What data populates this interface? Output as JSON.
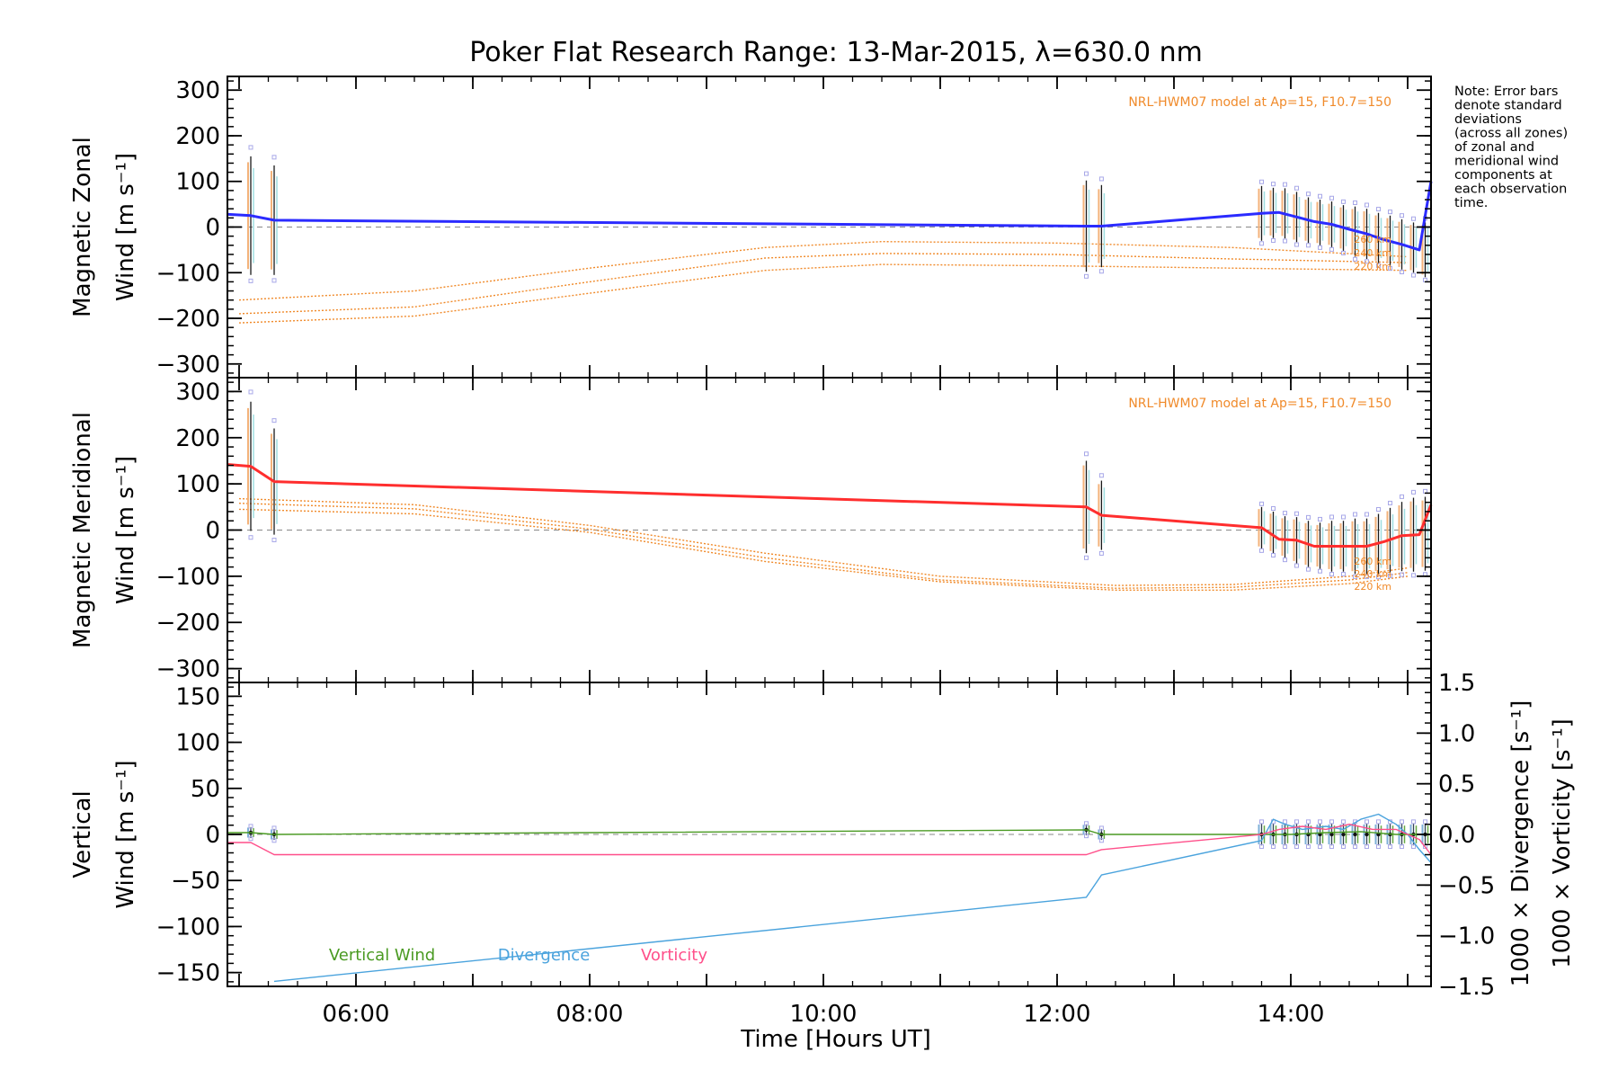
{
  "title": "Poker Flat Research Range: 13-Mar-2015, λ=630.0 nm",
  "xlabel": "Time [Hours UT]",
  "note": [
    "Note: Error bars",
    "denote standard",
    "deviations",
    "(across all zones)",
    "of zonal and",
    "meridional wind",
    "components at",
    "each observation",
    "time."
  ],
  "colors": {
    "zonal": "#2b2bff",
    "meridional": "#ff2e2e",
    "model": "#f08a2a",
    "vertical": "#4a9a22",
    "divergence": "#4aa3dd",
    "vorticity": "#ff4f8a",
    "points": "#a8a8e8",
    "grid": "#888888"
  },
  "x_ticks": [
    {
      "value": 6,
      "label": "06:00"
    },
    {
      "value": 8,
      "label": "08:00"
    },
    {
      "value": 10,
      "label": "10:00"
    },
    {
      "value": 12,
      "label": "12:00"
    },
    {
      "value": 14,
      "label": "14:00"
    }
  ],
  "chart_data": [
    {
      "type": "line",
      "ylabel": [
        "Magnetic Zonal",
        "Wind [m s⁻¹]"
      ],
      "xlim": [
        4.9,
        15.2
      ],
      "ylim": [
        -330,
        330
      ],
      "yticks": [
        300,
        200,
        100,
        0,
        -100,
        -200,
        -300
      ],
      "yticklabels": [
        "300",
        "200",
        "100",
        "0",
        "−100",
        "−200",
        "−300"
      ],
      "model_label": "NRL-HWM07 model at Ap=15, F10.7=150",
      "altitude_labels": [
        "260 km",
        "240 km",
        "220 km"
      ],
      "series": [
        {
          "name": "zonal",
          "x": [
            4.9,
            5.1,
            5.3,
            12.25,
            12.38,
            13.75,
            13.9,
            14.05,
            14.2,
            14.35,
            14.5,
            14.65,
            14.8,
            14.95,
            15.1,
            15.2
          ],
          "y": [
            28,
            25,
            15,
            2,
            2,
            30,
            32,
            22,
            12,
            6,
            -5,
            -15,
            -28,
            -38,
            -50,
            100
          ]
        },
        {
          "name": "model-260",
          "x": [
            5.0,
            6.5,
            8.0,
            9.5,
            10.5,
            12.0,
            13.5,
            15.0
          ],
          "y": [
            -160,
            -140,
            -90,
            -45,
            -32,
            -35,
            -45,
            -65
          ]
        },
        {
          "name": "model-240",
          "x": [
            5.0,
            6.5,
            8.0,
            9.5,
            10.5,
            12.0,
            13.5,
            15.0
          ],
          "y": [
            -190,
            -175,
            -120,
            -68,
            -58,
            -60,
            -70,
            -78
          ]
        },
        {
          "name": "model-220",
          "x": [
            5.0,
            6.5,
            8.0,
            9.5,
            10.5,
            12.0,
            13.5,
            15.0
          ],
          "y": [
            -210,
            -195,
            -145,
            -95,
            -82,
            -85,
            -90,
            -95
          ]
        }
      ],
      "errorbars": [
        {
          "x": 5.1,
          "y": 25,
          "err": 130
        },
        {
          "x": 5.3,
          "y": 15,
          "err": 120
        },
        {
          "x": 12.25,
          "y": 2,
          "err": 100
        },
        {
          "x": 12.38,
          "y": 2,
          "err": 90
        },
        {
          "x": 13.75,
          "y": 30,
          "err": 60
        },
        {
          "x": 13.85,
          "y": 31,
          "err": 55
        },
        {
          "x": 13.95,
          "y": 30,
          "err": 55
        },
        {
          "x": 14.05,
          "y": 22,
          "err": 55
        },
        {
          "x": 14.15,
          "y": 15,
          "err": 50
        },
        {
          "x": 14.25,
          "y": 10,
          "err": 50
        },
        {
          "x": 14.35,
          "y": 6,
          "err": 50
        },
        {
          "x": 14.45,
          "y": -2,
          "err": 50
        },
        {
          "x": 14.55,
          "y": -10,
          "err": 55
        },
        {
          "x": 14.65,
          "y": -15,
          "err": 55
        },
        {
          "x": 14.75,
          "y": -24,
          "err": 55
        },
        {
          "x": 14.85,
          "y": -30,
          "err": 55
        },
        {
          "x": 14.95,
          "y": -38,
          "err": 55
        },
        {
          "x": 15.05,
          "y": -45,
          "err": 55
        },
        {
          "x": 15.15,
          "y": -50,
          "err": 60
        }
      ]
    },
    {
      "type": "line",
      "ylabel": [
        "Magnetic Meridional",
        "Wind [m s⁻¹]"
      ],
      "xlim": [
        4.9,
        15.2
      ],
      "ylim": [
        -330,
        330
      ],
      "yticks": [
        300,
        200,
        100,
        0,
        -100,
        -200,
        -300
      ],
      "yticklabels": [
        "300",
        "200",
        "100",
        "0",
        "−100",
        "−200",
        "−300"
      ],
      "model_label": "NRL-HWM07 model at Ap=15, F10.7=150",
      "altitude_labels": [
        "260 km",
        "240 km",
        "220 km"
      ],
      "series": [
        {
          "name": "meridional",
          "x": [
            4.9,
            5.1,
            5.3,
            12.25,
            12.38,
            13.75,
            13.9,
            14.05,
            14.2,
            14.35,
            14.5,
            14.65,
            14.8,
            14.95,
            15.1,
            15.2
          ],
          "y": [
            142,
            138,
            105,
            50,
            32,
            5,
            -20,
            -22,
            -35,
            -35,
            -35,
            -35,
            -25,
            -12,
            -10,
            55
          ]
        },
        {
          "name": "model-260",
          "x": [
            5.0,
            6.5,
            8.0,
            9.5,
            11.0,
            12.5,
            13.5,
            14.5,
            15.0
          ],
          "y": [
            68,
            55,
            10,
            -50,
            -100,
            -120,
            -118,
            -100,
            -82
          ]
        },
        {
          "name": "model-240",
          "x": [
            5.0,
            6.5,
            8.0,
            9.5,
            11.0,
            12.5,
            13.5,
            14.5,
            15.0
          ],
          "y": [
            58,
            46,
            2,
            -60,
            -108,
            -126,
            -124,
            -108,
            -92
          ]
        },
        {
          "name": "model-220",
          "x": [
            5.0,
            6.5,
            8.0,
            9.5,
            11.0,
            12.5,
            13.5,
            14.5,
            15.0
          ],
          "y": [
            45,
            35,
            -5,
            -68,
            -112,
            -130,
            -130,
            -116,
            -100
          ]
        }
      ],
      "errorbars": [
        {
          "x": 5.1,
          "y": 138,
          "err": 140
        },
        {
          "x": 5.3,
          "y": 105,
          "err": 115
        },
        {
          "x": 12.25,
          "y": 50,
          "err": 100
        },
        {
          "x": 12.38,
          "y": 32,
          "err": 75
        },
        {
          "x": 13.75,
          "y": 5,
          "err": 45
        },
        {
          "x": 13.85,
          "y": -5,
          "err": 45
        },
        {
          "x": 13.95,
          "y": -15,
          "err": 45
        },
        {
          "x": 14.05,
          "y": -22,
          "err": 50
        },
        {
          "x": 14.15,
          "y": -30,
          "err": 50
        },
        {
          "x": 14.25,
          "y": -34,
          "err": 50
        },
        {
          "x": 14.35,
          "y": -35,
          "err": 55
        },
        {
          "x": 14.45,
          "y": -35,
          "err": 55
        },
        {
          "x": 14.55,
          "y": -35,
          "err": 60
        },
        {
          "x": 14.65,
          "y": -35,
          "err": 60
        },
        {
          "x": 14.75,
          "y": -30,
          "err": 65
        },
        {
          "x": 14.85,
          "y": -22,
          "err": 70
        },
        {
          "x": 14.95,
          "y": -14,
          "err": 75
        },
        {
          "x": 15.05,
          "y": -10,
          "err": 80
        },
        {
          "x": 15.15,
          "y": -8,
          "err": 80
        }
      ]
    },
    {
      "type": "line",
      "ylabel_left": [
        "Vertical",
        "Wind [m s⁻¹]"
      ],
      "ylabel_right_div": "1000 × Divergence [s⁻¹]",
      "ylabel_right_vor": "1000 × Vorticity [s⁻¹]",
      "xlim": [
        4.9,
        15.2
      ],
      "ylim": [
        -165,
        165
      ],
      "yticks": [
        150,
        100,
        50,
        0,
        -50,
        -100,
        -150
      ],
      "yticklabels": [
        "150",
        "100",
        "50",
        "0",
        "−50",
        "−100",
        "−150"
      ],
      "ylim_right": [
        -1.5,
        1.5
      ],
      "yticks_right": [
        1.5,
        1.0,
        0.5,
        0.0,
        -0.5,
        -1.0,
        -1.5
      ],
      "yticklabels_right": [
        "1.5",
        "1.0",
        "0.5",
        "0.0",
        "−0.5",
        "−1.0",
        "−1.5"
      ],
      "legend": [
        "Vertical Wind",
        "Divergence",
        "Vorticity"
      ],
      "series": [
        {
          "name": "Vertical Wind",
          "axis": "left",
          "x": [
            4.9,
            5.1,
            5.3,
            12.25,
            12.38,
            13.75,
            14.0,
            14.3,
            14.6,
            14.9,
            15.2
          ],
          "y": [
            2,
            2,
            0,
            5,
            0,
            0,
            0,
            2,
            3,
            0,
            0
          ]
        },
        {
          "name": "Divergence",
          "axis": "right",
          "x": [
            5.3,
            12.25,
            12.38,
            13.75,
            13.85,
            13.95,
            14.1,
            14.3,
            14.45,
            14.6,
            14.75,
            14.9,
            15.0,
            15.1,
            15.2
          ],
          "y": [
            -1.45,
            -0.62,
            -0.4,
            -0.06,
            0.15,
            0.1,
            0.05,
            0.08,
            0.05,
            0.15,
            0.2,
            0.1,
            0.0,
            -0.15,
            -0.28
          ]
        },
        {
          "name": "Vorticity",
          "axis": "right",
          "x": [
            4.9,
            5.1,
            5.3,
            12.25,
            12.38,
            13.75,
            13.9,
            14.1,
            14.3,
            14.5,
            14.7,
            14.9,
            15.0,
            15.1,
            15.2
          ],
          "y": [
            -0.08,
            -0.08,
            -0.2,
            -0.2,
            -0.15,
            0.0,
            0.05,
            0.08,
            0.05,
            0.1,
            0.05,
            0.05,
            0.0,
            -0.05,
            -0.2
          ]
        }
      ],
      "errorbars": [
        {
          "x": 5.1,
          "y": 2,
          "err": 6
        },
        {
          "x": 5.3,
          "y": 0,
          "err": 6
        },
        {
          "x": 12.25,
          "y": 5,
          "err": 6
        },
        {
          "x": 12.38,
          "y": 0,
          "err": 6
        },
        {
          "x": 13.75,
          "y": 0,
          "err": 12
        },
        {
          "x": 13.85,
          "y": 0,
          "err": 12
        },
        {
          "x": 13.95,
          "y": 0,
          "err": 12
        },
        {
          "x": 14.05,
          "y": 0,
          "err": 12
        },
        {
          "x": 14.15,
          "y": 0,
          "err": 12
        },
        {
          "x": 14.25,
          "y": 0,
          "err": 12
        },
        {
          "x": 14.35,
          "y": 0,
          "err": 12
        },
        {
          "x": 14.45,
          "y": 0,
          "err": 12
        },
        {
          "x": 14.55,
          "y": 0,
          "err": 12
        },
        {
          "x": 14.65,
          "y": 0,
          "err": 12
        },
        {
          "x": 14.75,
          "y": 0,
          "err": 12
        },
        {
          "x": 14.85,
          "y": 0,
          "err": 12
        },
        {
          "x": 14.95,
          "y": 0,
          "err": 12
        },
        {
          "x": 15.05,
          "y": 0,
          "err": 12
        },
        {
          "x": 15.15,
          "y": 0,
          "err": 12
        }
      ]
    }
  ]
}
